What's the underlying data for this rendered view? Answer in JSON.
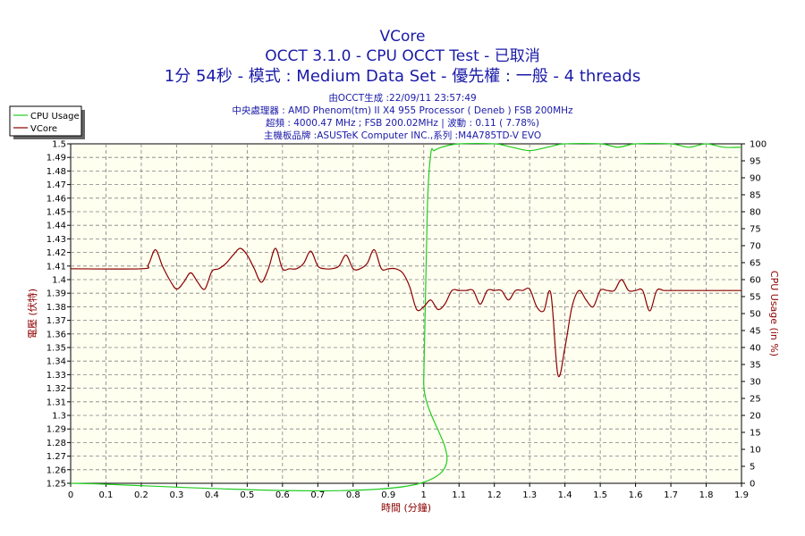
{
  "header": {
    "title": "VCore",
    "subtitle": "OCCT 3.1.0 - CPU OCCT Test - 已取消",
    "run_info": "1分 54秒 - 模式 : Medium Data Set - 優先權 : 一般 - 4 threads"
  },
  "info_lines": [
    "由OCCT生成 :22/09/11 23:57:49",
    "中央處理器 : AMD Phenom(tm) II X4 955 Processor ( Deneb ) FSB 200MHz",
    "超頻 : 4000.47 MHz ; FSB 200.02MHz | 波動 : 0.11 ( 7.78%)",
    "主機板品牌 :ASUSTeK Computer INC.,系列 :M4A785TD-V EVO"
  ],
  "colors": {
    "cpu_usage": "#22cc22",
    "vcore": "#8b0000",
    "plot_bg": "#fffff0",
    "grid": "#808080",
    "text_blue": "#1a1aa8"
  },
  "chart_data": {
    "type": "line",
    "xlabel": "時間 (分鐘)",
    "ylabel": "電壓 (伏特)",
    "y2label": "CPU Usage (in %)",
    "xlim": [
      0,
      1.9
    ],
    "ylim": [
      1.25,
      1.5
    ],
    "y2lim": [
      0,
      100
    ],
    "x_ticks": [
      "0",
      "0.1",
      "0.2",
      "0.3",
      "0.4",
      "0.5",
      "0.6",
      "0.7",
      "0.8",
      "0.9",
      "1",
      "1.1",
      "1.2",
      "1.3",
      "1.4",
      "1.5",
      "1.6",
      "1.7",
      "1.8",
      "1.9"
    ],
    "y_ticks": [
      "1.25",
      "1.26",
      "1.27",
      "1.28",
      "1.29",
      "1.3",
      "1.31",
      "1.32",
      "1.33",
      "1.34",
      "1.35",
      "1.36",
      "1.37",
      "1.38",
      "1.39",
      "1.4",
      "1.41",
      "1.42",
      "1.43",
      "1.44",
      "1.45",
      "1.46",
      "1.47",
      "1.48",
      "1.49",
      "1.5"
    ],
    "y2_ticks": [
      "0",
      "5",
      "10",
      "15",
      "20",
      "25",
      "30",
      "35",
      "40",
      "45",
      "50",
      "55",
      "60",
      "65",
      "70",
      "75",
      "80",
      "85",
      "90",
      "95",
      "100"
    ],
    "grid": true,
    "legend": "top-left",
    "series": [
      {
        "name": "CPU Usage",
        "axis": "right",
        "x": [
          0,
          0.99,
          1.0,
          1.01,
          1.02,
          1.03,
          1.05,
          1.1,
          1.2,
          1.25,
          1.3,
          1.35,
          1.4,
          1.5,
          1.55,
          1.6,
          1.7,
          1.75,
          1.8,
          1.85,
          1.9
        ],
        "values": [
          0,
          0,
          30,
          80,
          97,
          98,
          99,
          100,
          100,
          99,
          98,
          99,
          100,
          100,
          99,
          100,
          100,
          99,
          100,
          99,
          99
        ]
      },
      {
        "name": "VCore",
        "axis": "left",
        "x": [
          0,
          0.2,
          0.22,
          0.24,
          0.26,
          0.28,
          0.3,
          0.32,
          0.34,
          0.36,
          0.38,
          0.4,
          0.42,
          0.44,
          0.46,
          0.48,
          0.5,
          0.52,
          0.54,
          0.56,
          0.58,
          0.6,
          0.62,
          0.64,
          0.66,
          0.68,
          0.7,
          0.72,
          0.74,
          0.76,
          0.78,
          0.8,
          0.82,
          0.84,
          0.86,
          0.88,
          0.9,
          0.92,
          0.94,
          0.96,
          0.98,
          1.0,
          1.02,
          1.04,
          1.06,
          1.08,
          1.1,
          1.12,
          1.14,
          1.16,
          1.18,
          1.2,
          1.22,
          1.24,
          1.26,
          1.28,
          1.3,
          1.32,
          1.34,
          1.36,
          1.38,
          1.4,
          1.42,
          1.44,
          1.46,
          1.48,
          1.5,
          1.52,
          1.54,
          1.56,
          1.58,
          1.6,
          1.62,
          1.64,
          1.66,
          1.68,
          1.7,
          1.72,
          1.74,
          1.76,
          1.78,
          1.8,
          1.82,
          1.84,
          1.86,
          1.88,
          1.9
        ],
        "values": [
          1.408,
          1.408,
          1.411,
          1.422,
          1.41,
          1.4,
          1.393,
          1.398,
          1.405,
          1.398,
          1.393,
          1.406,
          1.408,
          1.412,
          1.418,
          1.423,
          1.418,
          1.408,
          1.398,
          1.408,
          1.423,
          1.408,
          1.408,
          1.408,
          1.412,
          1.421,
          1.41,
          1.408,
          1.408,
          1.41,
          1.418,
          1.408,
          1.408,
          1.412,
          1.422,
          1.408,
          1.408,
          1.408,
          1.405,
          1.395,
          1.378,
          1.38,
          1.385,
          1.378,
          1.382,
          1.392,
          1.392,
          1.392,
          1.392,
          1.382,
          1.392,
          1.392,
          1.392,
          1.385,
          1.392,
          1.392,
          1.393,
          1.38,
          1.377,
          1.39,
          1.33,
          1.35,
          1.38,
          1.392,
          1.385,
          1.38,
          1.392,
          1.392,
          1.392,
          1.4,
          1.392,
          1.392,
          1.392,
          1.377,
          1.392,
          1.392,
          1.392,
          1.392,
          1.392,
          1.392,
          1.392,
          1.392,
          1.392,
          1.392,
          1.392,
          1.392,
          1.392
        ]
      }
    ]
  }
}
